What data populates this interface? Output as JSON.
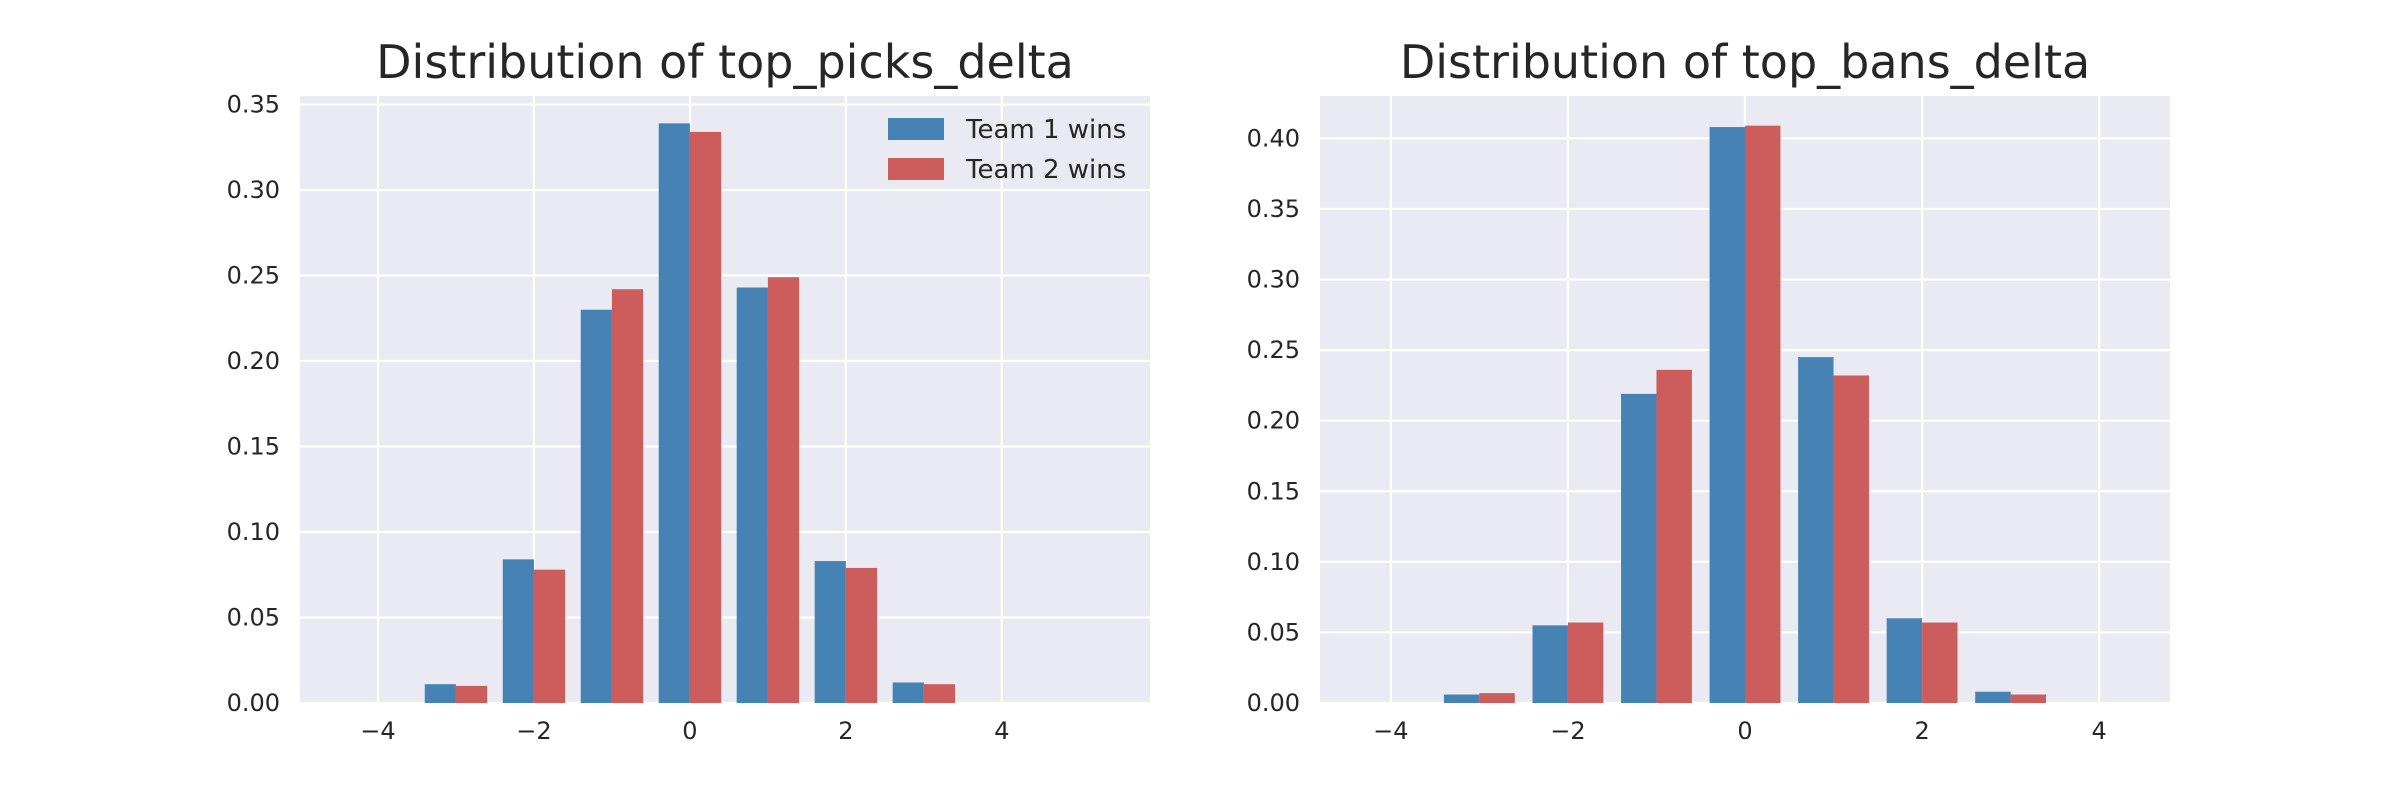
{
  "colors": {
    "background": "#EAEAF2",
    "grid": "#FFFFFF",
    "team1": "#4682B4",
    "team2": "#CD5C5C",
    "text": "#262626"
  },
  "chart_data": [
    {
      "type": "bar",
      "title": "Distribution of top_picks_delta",
      "xlabel": "",
      "ylabel": "",
      "grid": true,
      "legend_position": "top-right",
      "xlim": [
        -5.0,
        5.9
      ],
      "ylim": [
        0,
        0.355
      ],
      "xticks": [
        -4,
        -2,
        0,
        2,
        4
      ],
      "xtick_labels": [
        "−4",
        "−2",
        "0",
        "2",
        "4"
      ],
      "yticks": [
        0,
        0.05,
        0.1,
        0.15,
        0.2,
        0.25,
        0.3,
        0.35
      ],
      "ytick_labels": [
        "0.00",
        "0.05",
        "0.10",
        "0.15",
        "0.20",
        "0.25",
        "0.30",
        "0.35"
      ],
      "categories": [
        -3,
        -2,
        -1,
        0,
        1,
        2,
        3
      ],
      "series": [
        {
          "name": "Team 1 wins",
          "values": [
            0.011,
            0.084,
            0.23,
            0.339,
            0.243,
            0.083,
            0.012
          ]
        },
        {
          "name": "Team 2 wins",
          "values": [
            0.01,
            0.078,
            0.242,
            0.334,
            0.249,
            0.079,
            0.011
          ]
        }
      ]
    },
    {
      "type": "bar",
      "title": "Distribution of top_bans_delta",
      "xlabel": "",
      "ylabel": "",
      "grid": true,
      "xlim": [
        -4.8,
        4.8
      ],
      "ylim": [
        0,
        0.43
      ],
      "xticks": [
        -4,
        -2,
        0,
        2,
        4
      ],
      "xtick_labels": [
        "−4",
        "−2",
        "0",
        "2",
        "4"
      ],
      "yticks": [
        0,
        0.05,
        0.1,
        0.15,
        0.2,
        0.25,
        0.3,
        0.35,
        0.4
      ],
      "ytick_labels": [
        "0.00",
        "0.05",
        "0.10",
        "0.15",
        "0.20",
        "0.25",
        "0.30",
        "0.35",
        "0.40"
      ],
      "categories": [
        -3,
        -2,
        -1,
        0,
        1,
        2,
        3
      ],
      "series": [
        {
          "name": "Team 1 wins",
          "values": [
            0.006,
            0.055,
            0.219,
            0.408,
            0.245,
            0.06,
            0.008
          ]
        },
        {
          "name": "Team 2 wins",
          "values": [
            0.007,
            0.057,
            0.236,
            0.409,
            0.232,
            0.057,
            0.006
          ]
        }
      ]
    }
  ]
}
